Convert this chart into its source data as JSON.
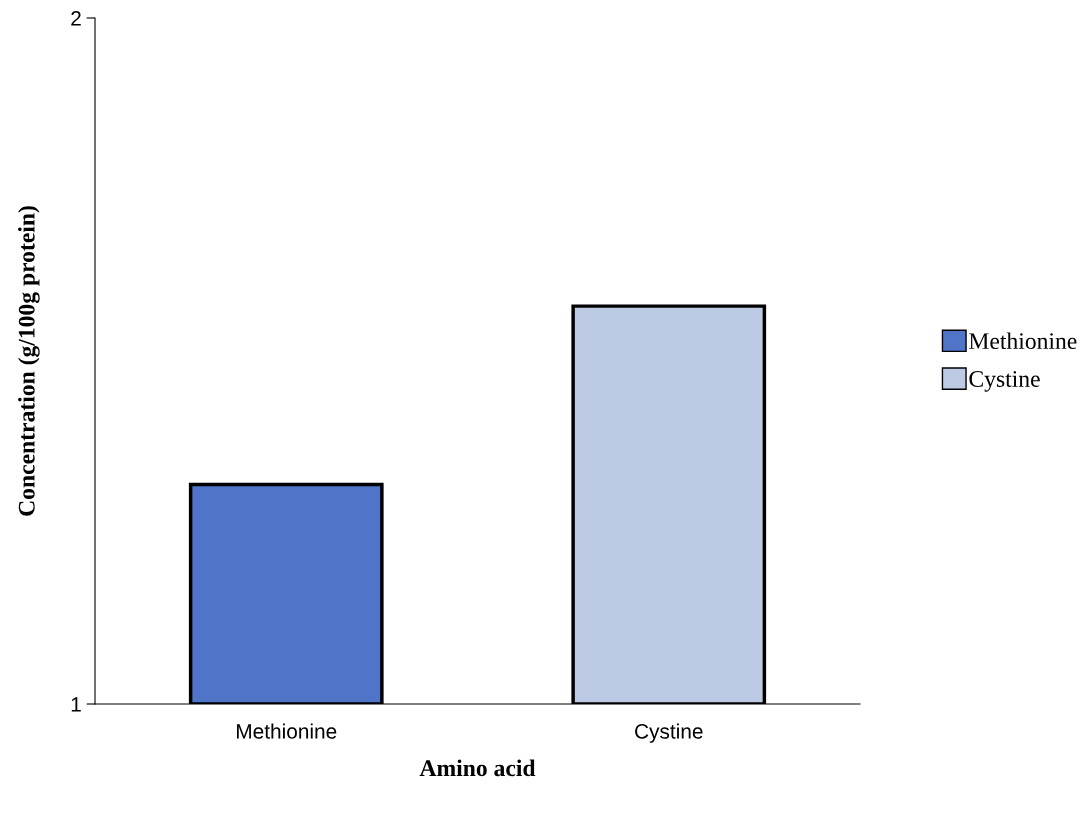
{
  "chart_data": {
    "type": "bar",
    "xlabel": "Amino acid",
    "ylabel": "Concentration (g/100g protein)",
    "categories": [
      "Methionine",
      "Cystine"
    ],
    "series": [
      {
        "name": "Methionine",
        "color": "#4f74c8",
        "values": [
          1.32,
          null
        ]
      },
      {
        "name": "Cystine",
        "color": "#bccbe3",
        "values": [
          null,
          1.58
        ]
      }
    ],
    "ylim": [
      1,
      2
    ],
    "yticks": [
      1,
      2
    ],
    "grid": false,
    "legend": "right"
  }
}
